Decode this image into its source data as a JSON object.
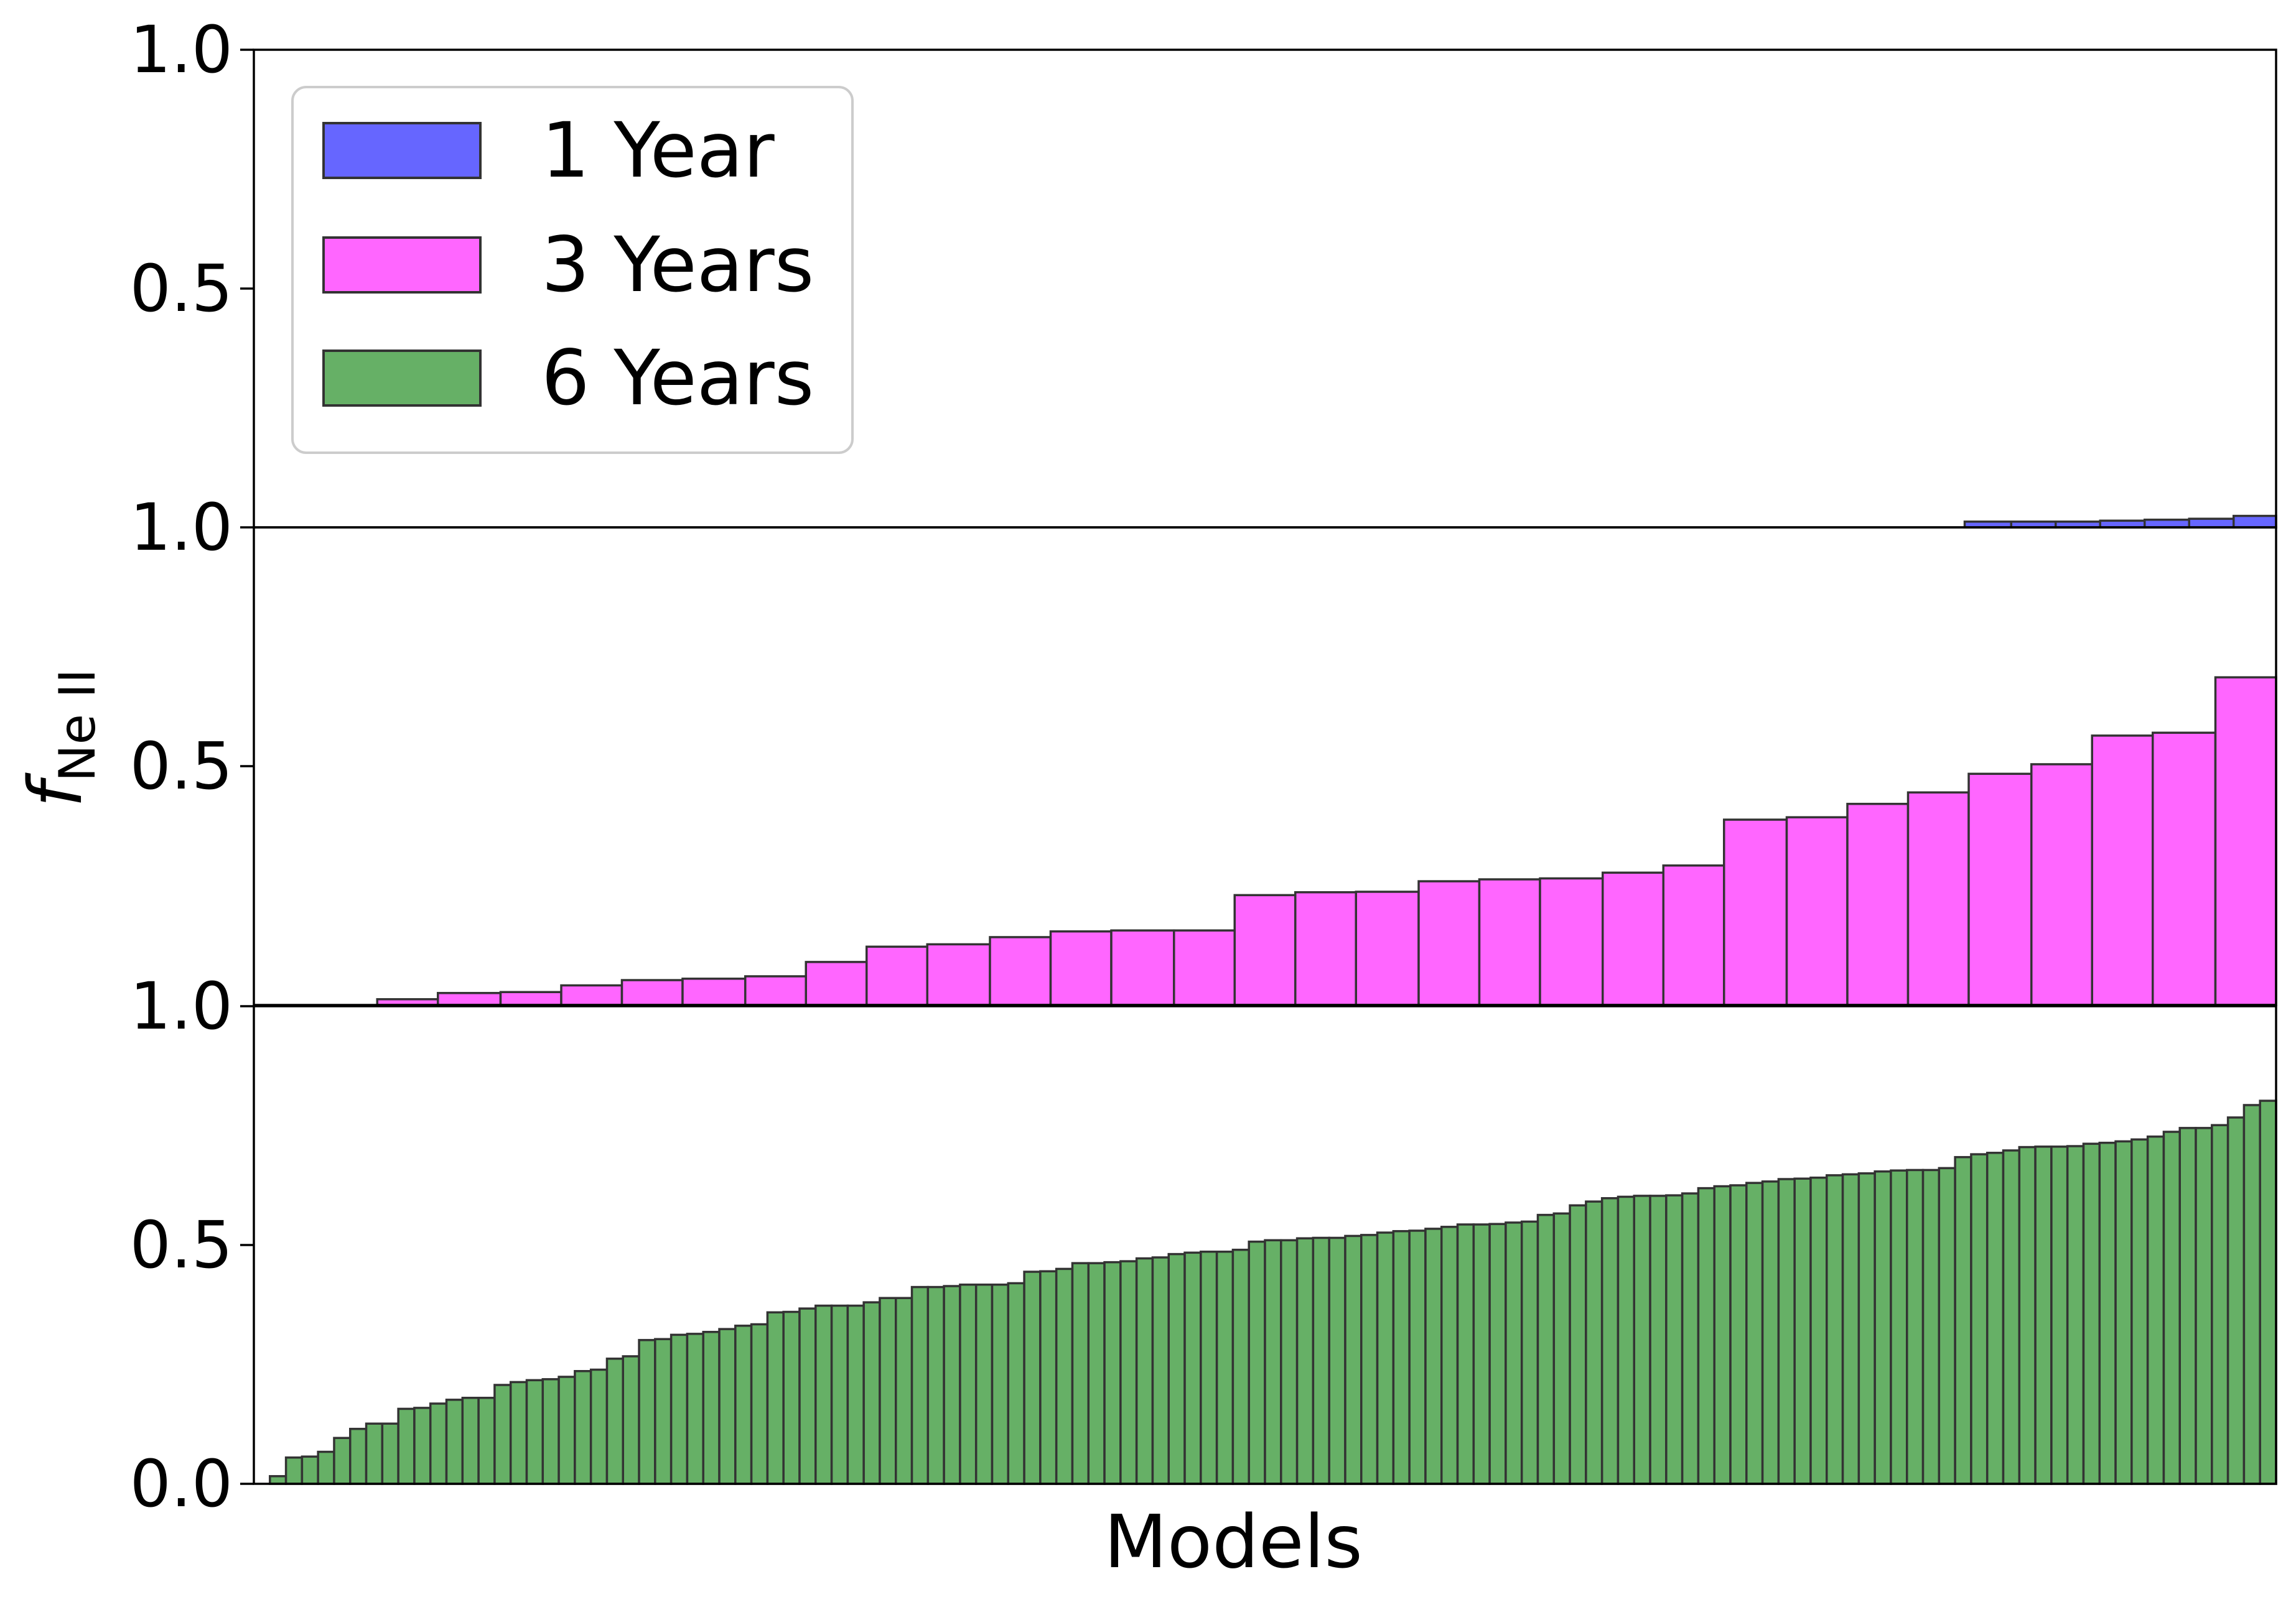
{
  "chart_data": {
    "type": "bar",
    "xlabel": "Models",
    "ylabel": {
      "main": "f",
      "sub": "Ne II"
    },
    "legend": {
      "placement": "top-left",
      "entries": [
        {
          "label": "1 Year",
          "color": "#6666ff"
        },
        {
          "label": "3 Years",
          "color": "#ff66ff"
        },
        {
          "label": "6 Years",
          "color": "#66b066"
        }
      ]
    },
    "edge_color": "#333333",
    "panels": [
      {
        "name": "1 Year",
        "color": "#6666ff",
        "ylim": [
          0,
          1.0
        ],
        "yticks": [
          "1.0",
          "0.5"
        ],
        "bars": [
          {
            "start": 0.846,
            "end": 0.869,
            "value": 0.012
          },
          {
            "start": 0.869,
            "end": 0.891,
            "value": 0.012
          },
          {
            "start": 0.891,
            "end": 0.913,
            "value": 0.012
          },
          {
            "start": 0.913,
            "end": 0.935,
            "value": 0.014
          },
          {
            "start": 0.935,
            "end": 0.957,
            "value": 0.016
          },
          {
            "start": 0.957,
            "end": 0.979,
            "value": 0.018
          },
          {
            "start": 0.979,
            "end": 1.0,
            "value": 0.024
          }
        ]
      },
      {
        "name": "3 Years",
        "color": "#ff66ff",
        "ylim": [
          0,
          1.0
        ],
        "yticks": [
          "1.0",
          "0.5"
        ],
        "bars": [
          {
            "start": 0.061,
            "end": 0.091,
            "value": 0.012
          },
          {
            "start": 0.091,
            "end": 0.122,
            "value": 0.025
          },
          {
            "start": 0.122,
            "end": 0.152,
            "value": 0.027
          },
          {
            "start": 0.152,
            "end": 0.182,
            "value": 0.041
          },
          {
            "start": 0.182,
            "end": 0.212,
            "value": 0.052
          },
          {
            "start": 0.212,
            "end": 0.243,
            "value": 0.055
          },
          {
            "start": 0.243,
            "end": 0.273,
            "value": 0.06
          },
          {
            "start": 0.273,
            "end": 0.303,
            "value": 0.09
          },
          {
            "start": 0.303,
            "end": 0.333,
            "value": 0.122
          },
          {
            "start": 0.333,
            "end": 0.364,
            "value": 0.127
          },
          {
            "start": 0.364,
            "end": 0.394,
            "value": 0.142
          },
          {
            "start": 0.394,
            "end": 0.424,
            "value": 0.154
          },
          {
            "start": 0.424,
            "end": 0.455,
            "value": 0.156
          },
          {
            "start": 0.455,
            "end": 0.485,
            "value": 0.156
          },
          {
            "start": 0.485,
            "end": 0.515,
            "value": 0.23
          },
          {
            "start": 0.515,
            "end": 0.545,
            "value": 0.236
          },
          {
            "start": 0.545,
            "end": 0.576,
            "value": 0.237
          },
          {
            "start": 0.576,
            "end": 0.606,
            "value": 0.259
          },
          {
            "start": 0.606,
            "end": 0.636,
            "value": 0.263
          },
          {
            "start": 0.636,
            "end": 0.667,
            "value": 0.265
          },
          {
            "start": 0.667,
            "end": 0.697,
            "value": 0.277
          },
          {
            "start": 0.697,
            "end": 0.727,
            "value": 0.292
          },
          {
            "start": 0.727,
            "end": 0.758,
            "value": 0.388
          },
          {
            "start": 0.758,
            "end": 0.788,
            "value": 0.393
          },
          {
            "start": 0.788,
            "end": 0.818,
            "value": 0.421
          },
          {
            "start": 0.818,
            "end": 0.848,
            "value": 0.445
          },
          {
            "start": 0.848,
            "end": 0.879,
            "value": 0.484
          },
          {
            "start": 0.879,
            "end": 0.909,
            "value": 0.504
          },
          {
            "start": 0.909,
            "end": 0.939,
            "value": 0.564
          },
          {
            "start": 0.939,
            "end": 0.97,
            "value": 0.57
          },
          {
            "start": 0.97,
            "end": 1.0,
            "value": 0.686
          }
        ]
      },
      {
        "name": "6 Years",
        "color": "#66b066",
        "ylim": [
          0,
          1.0
        ],
        "yticks": [
          "1.0",
          "0.5",
          "0.0"
        ],
        "values": [
          0.016,
          0.055,
          0.057,
          0.067,
          0.096,
          0.115,
          0.126,
          0.126,
          0.157,
          0.159,
          0.168,
          0.176,
          0.18,
          0.18,
          0.207,
          0.213,
          0.217,
          0.219,
          0.224,
          0.236,
          0.239,
          0.262,
          0.267,
          0.301,
          0.303,
          0.312,
          0.314,
          0.318,
          0.324,
          0.331,
          0.334,
          0.359,
          0.36,
          0.367,
          0.373,
          0.373,
          0.373,
          0.38,
          0.389,
          0.389,
          0.412,
          0.412,
          0.414,
          0.417,
          0.417,
          0.417,
          0.42,
          0.444,
          0.445,
          0.45,
          0.462,
          0.462,
          0.464,
          0.466,
          0.472,
          0.474,
          0.481,
          0.484,
          0.486,
          0.486,
          0.49,
          0.507,
          0.51,
          0.51,
          0.514,
          0.515,
          0.515,
          0.519,
          0.521,
          0.526,
          0.529,
          0.53,
          0.534,
          0.538,
          0.543,
          0.543,
          0.544,
          0.547,
          0.549,
          0.563,
          0.566,
          0.583,
          0.591,
          0.598,
          0.601,
          0.603,
          0.603,
          0.604,
          0.608,
          0.619,
          0.623,
          0.625,
          0.63,
          0.633,
          0.638,
          0.639,
          0.641,
          0.646,
          0.648,
          0.65,
          0.654,
          0.656,
          0.657,
          0.657,
          0.661,
          0.684,
          0.69,
          0.693,
          0.698,
          0.705,
          0.706,
          0.706,
          0.707,
          0.712,
          0.714,
          0.717,
          0.721,
          0.727,
          0.737,
          0.745,
          0.745,
          0.751,
          0.767,
          0.793,
          0.802
        ]
      }
    ]
  }
}
